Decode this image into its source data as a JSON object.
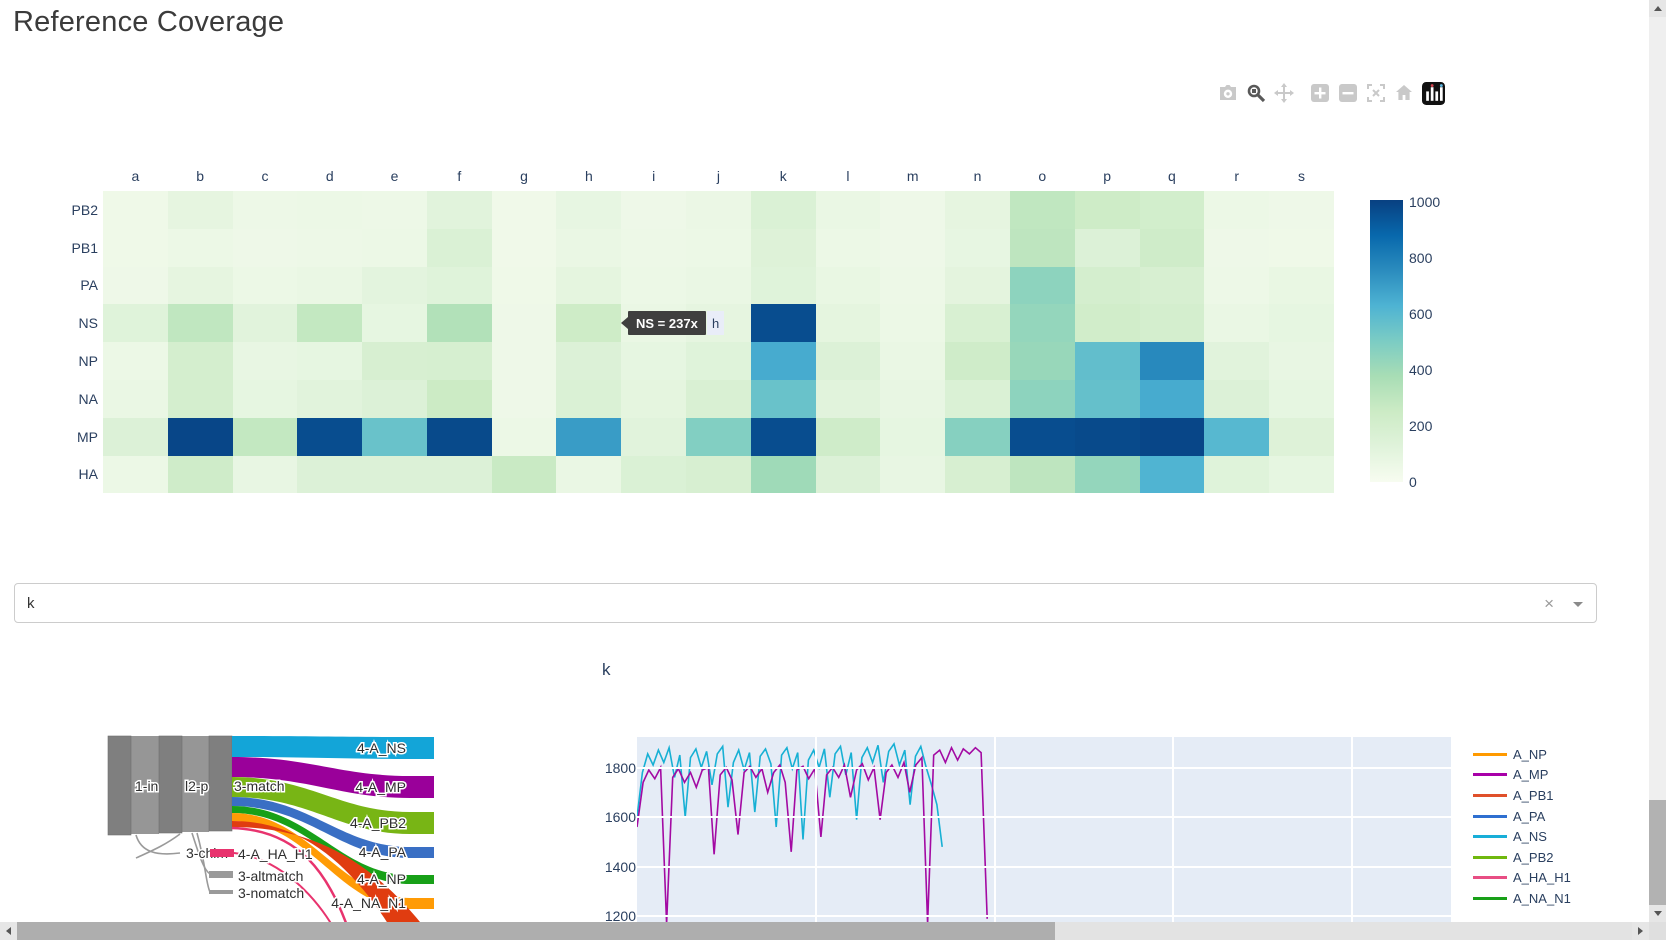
{
  "page": {
    "title": "Reference Coverage"
  },
  "modebar": {
    "icons": [
      {
        "name": "camera-icon",
        "active": false
      },
      {
        "name": "zoom-icon",
        "active": true
      },
      {
        "name": "pan-icon",
        "active": false
      },
      {
        "name": "zoom-in-icon",
        "active": false
      },
      {
        "name": "zoom-out-icon",
        "active": false
      },
      {
        "name": "autoscale-icon",
        "active": false
      },
      {
        "name": "reset-home-icon",
        "active": false
      },
      {
        "name": "plotly-logo-icon",
        "active": false
      }
    ]
  },
  "tooltip": {
    "text": "NS = 237x",
    "axis_label": "h"
  },
  "selector": {
    "value": "k",
    "clear_label": "×"
  },
  "chart_data": [
    {
      "id": "reference-coverage-heatmap",
      "type": "heatmap",
      "x_categories": [
        "a",
        "b",
        "c",
        "d",
        "e",
        "f",
        "g",
        "h",
        "i",
        "j",
        "k",
        "l",
        "m",
        "n",
        "o",
        "p",
        "q",
        "r",
        "s"
      ],
      "y_categories": [
        "PB2",
        "PB1",
        "PA",
        "NS",
        "NP",
        "NA",
        "MP",
        "HA"
      ],
      "values": [
        [
          45,
          95,
          55,
          60,
          55,
          120,
          40,
          85,
          50,
          65,
          160,
          70,
          50,
          95,
          290,
          240,
          210,
          60,
          50
        ],
        [
          45,
          60,
          50,
          55,
          60,
          160,
          40,
          70,
          55,
          60,
          140,
          60,
          50,
          85,
          300,
          150,
          230,
          50,
          45
        ],
        [
          50,
          95,
          60,
          70,
          110,
          130,
          45,
          100,
          60,
          70,
          130,
          75,
          55,
          105,
          450,
          200,
          180,
          55,
          75
        ],
        [
          130,
          290,
          120,
          280,
          90,
          340,
          50,
          237,
          70,
          95,
          960,
          100,
          60,
          175,
          430,
          220,
          200,
          70,
          90
        ],
        [
          60,
          200,
          80,
          90,
          180,
          190,
          50,
          150,
          90,
          130,
          650,
          150,
          70,
          230,
          420,
          570,
          760,
          120,
          80
        ],
        [
          70,
          200,
          90,
          120,
          150,
          250,
          50,
          160,
          100,
          170,
          550,
          120,
          80,
          160,
          450,
          560,
          650,
          150,
          90
        ],
        [
          150,
          980,
          280,
          960,
          550,
          970,
          60,
          700,
          120,
          480,
          960,
          230,
          90,
          470,
          960,
          970,
          980,
          600,
          140
        ],
        [
          60,
          230,
          80,
          150,
          150,
          150,
          260,
          70,
          160,
          180,
          400,
          150,
          80,
          180,
          300,
          430,
          620,
          130,
          90
        ]
      ],
      "zmin": 0,
      "zmax": 1000,
      "colorscale_name": "GnBu",
      "colorscale_stops": [
        [
          0.0,
          "#f7fcf0"
        ],
        [
          0.125,
          "#e0f3db"
        ],
        [
          0.25,
          "#ccebc5"
        ],
        [
          0.375,
          "#a8ddb5"
        ],
        [
          0.5,
          "#7bccc4"
        ],
        [
          0.625,
          "#4eb3d3"
        ],
        [
          0.75,
          "#2b8cbe"
        ],
        [
          0.875,
          "#0868ac"
        ],
        [
          1.0,
          "#084081"
        ]
      ],
      "colorbar_ticks": [
        "1000",
        "800",
        "600",
        "400",
        "200",
        "0"
      ],
      "hover": {
        "x": "h",
        "y": "NS",
        "value": 237
      }
    },
    {
      "id": "read-flow-sankey",
      "type": "sankey",
      "stage_nodes": [
        {
          "label": "1-in",
          "color": "#7f7f7f"
        },
        {
          "label": "l2-p",
          "color": "#7f7f7f"
        },
        {
          "label": "3-match",
          "color": "#7f7f7f"
        }
      ],
      "minor_nodes": [
        {
          "label": "3-chim",
          "color": "#9a9a9a"
        },
        {
          "label": "4-A_HA_H1",
          "color": "#e8336e"
        },
        {
          "label": "3-altmatch",
          "color": "#9a9a9a"
        },
        {
          "label": "3-nomatch",
          "color": "#9a9a9a"
        }
      ],
      "target_nodes": [
        {
          "label": "4-A_NS",
          "color": "#13a5d8"
        },
        {
          "label": "4-A_MP",
          "color": "#9a009a"
        },
        {
          "label": "4-A_PB2",
          "color": "#78b515"
        },
        {
          "label": "4-A_PA",
          "color": "#3a6fc4"
        },
        {
          "label": "4-A_NP",
          "color": "#18a018"
        },
        {
          "label": "4-A_NA_N1",
          "color": "#ff9b05"
        }
      ],
      "offscreen_link_colors": [
        "#e03c10",
        "#e8336e"
      ]
    },
    {
      "id": "coverage-depth-line",
      "type": "line",
      "title": "k",
      "yticks": [
        "1800",
        "1600",
        "1400",
        "1200"
      ],
      "y_range_visible": [
        1180,
        1920
      ],
      "x_gridlines": [
        500,
        1000,
        1500,
        2000
      ],
      "grid": true,
      "legend_position": "right",
      "series": [
        {
          "name": "A_NS",
          "color": "#17b0d4",
          "x": [
            0,
            15,
            30,
            45,
            60,
            75,
            90,
            105,
            120,
            135,
            150,
            165,
            180,
            195,
            210,
            225,
            240,
            255,
            270,
            285,
            300,
            315,
            330,
            345,
            360,
            375,
            390,
            405,
            420,
            435,
            450,
            465,
            480,
            495,
            510,
            525,
            540,
            555,
            570,
            585,
            600,
            615,
            630,
            645,
            660,
            675,
            690,
            705,
            720,
            735,
            750,
            765,
            780,
            795,
            810,
            825,
            840,
            855
          ],
          "y": [
            1600,
            1780,
            1855,
            1810,
            1870,
            1820,
            1880,
            1760,
            1850,
            1600,
            1840,
            1875,
            1800,
            1865,
            1730,
            1855,
            1885,
            1640,
            1820,
            1870,
            1790,
            1860,
            1620,
            1845,
            1875,
            1815,
            1560,
            1850,
            1880,
            1795,
            1860,
            1510,
            1830,
            1870,
            1800,
            1875,
            1680,
            1855,
            1885,
            1770,
            1860,
            1590,
            1840,
            1880,
            1820,
            1890,
            1740,
            1865,
            1895,
            1810,
            1870,
            1650,
            1845,
            1885,
            1800,
            1730,
            1650,
            1480
          ]
        },
        {
          "name": "A_MP",
          "color": "#a30aa3",
          "x": [
            0,
            17,
            33,
            50,
            66,
            83,
            100,
            116,
            133,
            150,
            166,
            183,
            200,
            216,
            233,
            250,
            266,
            283,
            300,
            316,
            333,
            350,
            366,
            383,
            400,
            415,
            432,
            448,
            465,
            481,
            498,
            515,
            531,
            548,
            565,
            581,
            598,
            615,
            631,
            648,
            664,
            681,
            698,
            714,
            731,
            748,
            764,
            781,
            798,
            814,
            831,
            848,
            864,
            881,
            898,
            914,
            931,
            948,
            964,
            981
          ],
          "y": [
            1560,
            1740,
            1790,
            1755,
            1800,
            1170,
            1760,
            1795,
            1740,
            1780,
            1720,
            1790,
            1800,
            1450,
            1770,
            1800,
            1750,
            1530,
            1780,
            1805,
            1760,
            1795,
            1700,
            1780,
            1810,
            1740,
            1460,
            1790,
            1805,
            1755,
            1795,
            1520,
            1770,
            1800,
            1760,
            1810,
            1680,
            1790,
            1815,
            1750,
            1800,
            1590,
            1780,
            1810,
            1760,
            1820,
            1700,
            1810,
            1840,
            1170,
            1850,
            1870,
            1820,
            1880,
            1830,
            1875,
            1855,
            1880,
            1860,
            1190
          ]
        }
      ],
      "legend": [
        {
          "label": "A_NP",
          "color": "#ff9a00"
        },
        {
          "label": "A_MP",
          "color": "#a800a8"
        },
        {
          "label": "A_PB1",
          "color": "#e0502a"
        },
        {
          "label": "A_PA",
          "color": "#2e6fd0"
        },
        {
          "label": "A_NS",
          "color": "#18aed8"
        },
        {
          "label": "A_PB2",
          "color": "#70b80e"
        },
        {
          "label": "A_HA_H1",
          "color": "#e84e84"
        },
        {
          "label": "A_NA_N1",
          "color": "#18a018"
        }
      ]
    }
  ]
}
